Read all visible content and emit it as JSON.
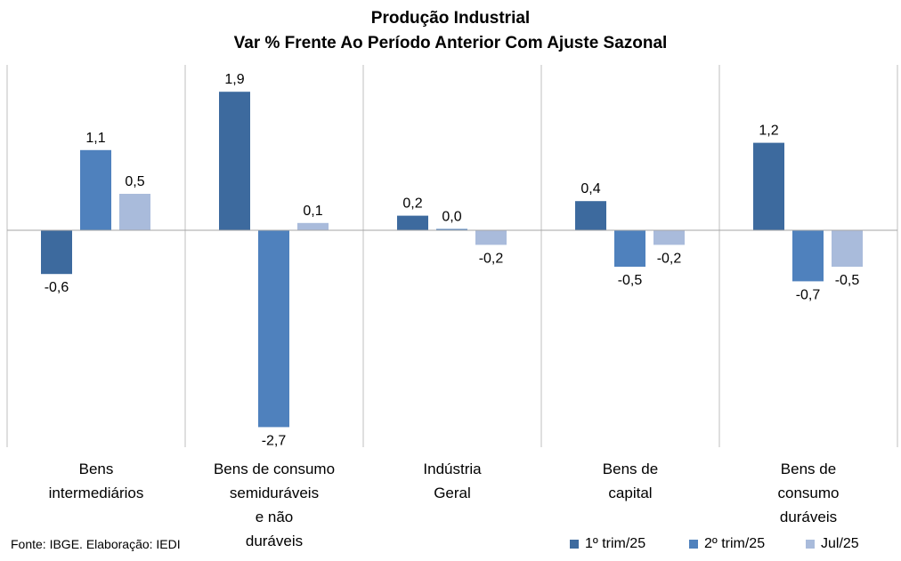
{
  "chart_data": {
    "type": "bar",
    "title": "Produção Industrial",
    "subtitle": "Var % Frente Ao Período Anterior Com Ajuste Sazonal",
    "categories": [
      [
        "Bens",
        "intermediários"
      ],
      [
        "Bens de consumo",
        "semiduráveis",
        "e não",
        "duráveis"
      ],
      [
        "Indústria",
        "Geral"
      ],
      [
        "Bens de",
        "capital"
      ],
      [
        "Bens de",
        "consumo",
        "duráveis"
      ]
    ],
    "series": [
      {
        "name": "1º trim/25",
        "color": "#3d6a9e",
        "values": [
          -0.6,
          1.9,
          0.2,
          0.4,
          1.2
        ],
        "labels": [
          "-0,6",
          "1,9",
          "0,2",
          "0,4",
          "1,2"
        ]
      },
      {
        "name": "2º trim/25",
        "color": "#4f81bd",
        "values": [
          1.1,
          -2.7,
          0.0,
          -0.5,
          -0.7
        ],
        "labels": [
          "1,1",
          "-2,7",
          "0,0",
          "-0,5",
          "-0,7"
        ]
      },
      {
        "name": "Jul/25",
        "color": "#a9bbdb",
        "values": [
          0.5,
          0.1,
          -0.2,
          -0.2,
          -0.5
        ],
        "labels": [
          "0,5",
          "0,1",
          "-0,2",
          "-0,2",
          "-0,5"
        ]
      }
    ],
    "ylim": [
      -2.9,
      2.2
    ],
    "grid": false,
    "legend_position": "bottom-right"
  },
  "source": "Fonte: IBGE. Elaboração: IEDI"
}
